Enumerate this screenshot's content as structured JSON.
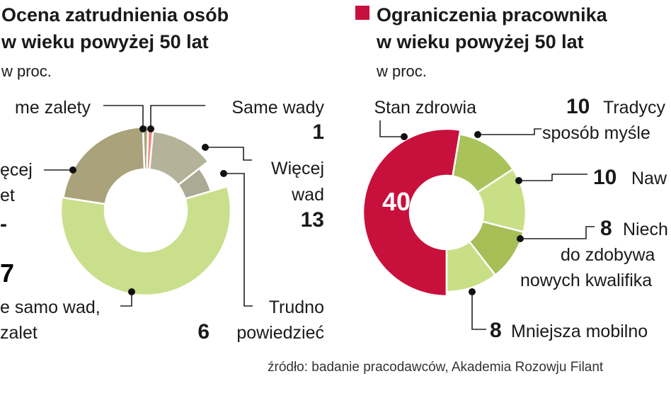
{
  "colors": {
    "accent": "#c8103c",
    "left_slices": [
      "#a9a27a",
      "#f08a7e",
      "#b4b39a",
      "#aaaa95",
      "#c9df8c"
    ],
    "right_slices": [
      "#c8103c",
      "#a9c25a",
      "#c9df86",
      "#a7bd55",
      "#c9df86"
    ]
  },
  "left_panel": {
    "title_line1": "Ocena zatrudnienia osób",
    "title_line2": "w wieku powyżej 50 lat",
    "unit": "w proc."
  },
  "right_panel": {
    "title_line1": "Ograniczenia pracownika",
    "title_line2": "w wieku powyżej 50 lat",
    "unit": "w proc."
  },
  "left_labels": {
    "same_zalety": "me zalety",
    "same_wady": "Same wady",
    "same_wady_value": "1",
    "wiecej_wad_line1": "Więcej",
    "wiecej_wad_line2": "wad",
    "wiecej_wad_value": "13",
    "wiecej_zalet_line1": "ęcej",
    "wiecej_zalet_line2": "et",
    "wiecej_zalet_value_fragment": "-",
    "tyle_samo_value_fragment": "7",
    "tyle_samo_line1": "e samo wad,",
    "tyle_samo_line2": "zalet",
    "trudno_line1": "Trudno",
    "trudno_value": "6",
    "trudno_line2": "powiedzieć"
  },
  "right_labels": {
    "stan_zdrowia": "Stan zdrowia",
    "stan_zdrowia_value": "40",
    "tradycyjny_value": "10",
    "tradycyjny_line1": "Tradycy",
    "tradycyjny_line2": "sposób myśle",
    "nawyki_value": "10",
    "nawyki_label": "Naw",
    "niechec_value": "8",
    "niechec_line1": "Niech",
    "niechec_line2": "do zdobywa",
    "niechec_line3": "nowych kwalifika",
    "mobilnosc_value": "8",
    "mobilnosc_label": "Mniejsza mobilno"
  },
  "source": "źródło: badanie pracodawców, Akademia Rozowju Filant",
  "chart_data": [
    {
      "type": "pie",
      "title": "Ocena zatrudnienia osób w wieku powyżej 50 lat",
      "unit": "w proc.",
      "categories": [
        "me zalety",
        "Same wady",
        "Więcej wad",
        "Trudno powiedzieć",
        "e samo wad, zalet",
        "ęcej et"
      ],
      "values": [
        1,
        1,
        13,
        6,
        57,
        22
      ]
    },
    {
      "type": "pie",
      "title": "Ograniczenia pracownika w wieku powyżej 50 lat",
      "unit": "w proc.",
      "categories": [
        "Stan zdrowia",
        "Tradycy sposób myśle",
        "Naw",
        "Niech do zdobywa nowych kwalifika",
        "Mniejsza mobilno"
      ],
      "values": [
        40,
        10,
        10,
        8,
        8
      ]
    }
  ]
}
